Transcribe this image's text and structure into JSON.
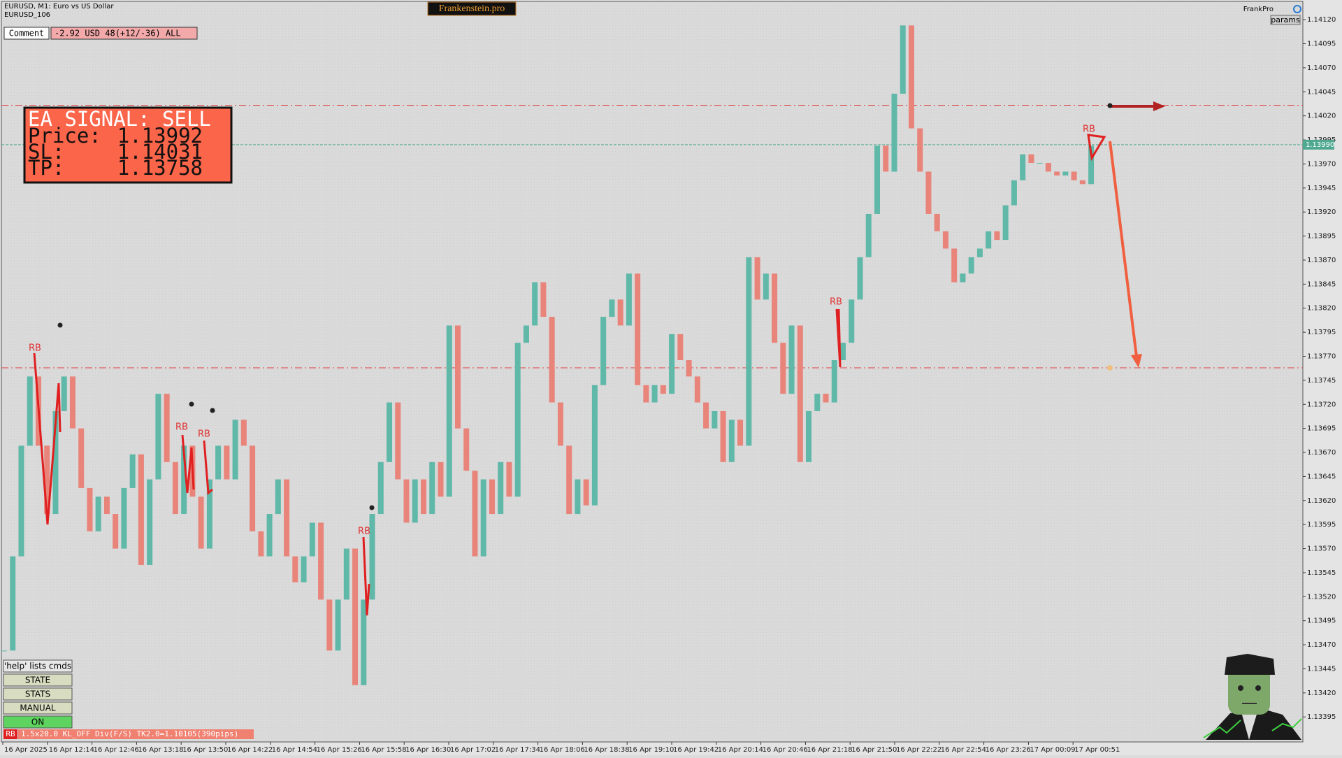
{
  "header": {
    "symbol": "EURUSD, M1:  Euro vs US Dollar",
    "account": "EURUSD_106",
    "brand": "Frankenstein.pro",
    "user": "FrankPro",
    "params": "params"
  },
  "comment": {
    "label": "Comment",
    "text": "-2.92 USD 48(+12/-36) ALL"
  },
  "signal": {
    "title": "EA SIGNAL: SELL",
    "rows": [
      {
        "label": "Price:",
        "value": "1.13992"
      },
      {
        "label": "SL:",
        "value": "1.14031"
      },
      {
        "label": "TP:",
        "value": "1.13758"
      }
    ]
  },
  "buttons": [
    "'help' lists cmds",
    "STATE",
    "STATS",
    "MANUAL",
    "ON"
  ],
  "status": {
    "tag": "RB",
    "text": "1.5x20.0 KL_OFF Div(F/S) TK2.0=1.10105(390pips)"
  },
  "annotations": [
    "RB",
    "RB",
    "RB",
    "RB",
    "RB",
    "RB"
  ],
  "chart_data": {
    "type": "candlestick",
    "up_color": "#5fb8a8",
    "down_color": "#e8847a",
    "values": [
      1.13464,
      1.13562,
      1.13677,
      1.13749,
      1.13677,
      1.13606,
      1.13713,
      1.13749,
      1.13695,
      1.13633,
      1.13588,
      1.13624,
      1.13606,
      1.1357,
      1.13633,
      1.13668,
      1.13553,
      1.13642,
      1.13731,
      1.1366,
      1.13606,
      1.13677,
      1.13624,
      1.1357,
      1.13642,
      1.13677,
      1.13642,
      1.13704,
      1.13677,
      1.13588,
      1.13562,
      1.13606,
      1.13642,
      1.13562,
      1.13535,
      1.13562,
      1.13597,
      1.13517,
      1.13464,
      1.13517,
      1.1357,
      1.13428,
      1.13517,
      1.13606,
      1.1366,
      1.13722,
      1.13642,
      1.13597,
      1.13642,
      1.13606,
      1.1366,
      1.13624,
      1.13802,
      1.13695,
      1.13651,
      1.13562,
      1.13642,
      1.13606,
      1.1366,
      1.13624,
      1.13784,
      1.13802,
      1.13847,
      1.13811,
      1.13722,
      1.13677,
      1.13606,
      1.13642,
      1.13615,
      1.1374,
      1.13811,
      1.13829,
      1.13802,
      1.13856,
      1.1374,
      1.13722,
      1.1374,
      1.13731,
      1.13793,
      1.13766,
      1.13749,
      1.13722,
      1.13695,
      1.13713,
      1.1366,
      1.13704,
      1.13677,
      1.13873,
      1.13829,
      1.13856,
      1.13784,
      1.13731,
      1.13802,
      1.1366,
      1.13713,
      1.13731,
      1.13722,
      1.13766,
      1.13784,
      1.13829,
      1.13873,
      1.13918,
      1.13989,
      1.13962,
      1.14043,
      1.14114,
      1.14007,
      1.13962,
      1.13918,
      1.139,
      1.13882,
      1.13847,
      1.13856,
      1.13873,
      1.13882,
      1.139,
      1.13891,
      1.13927,
      1.13953,
      1.1398,
      1.13971,
      1.13971,
      1.13962,
      1.13958,
      1.13962,
      1.13953,
      1.13949,
      1.13989
    ],
    "ylim": [
      1.13369,
      1.14139
    ],
    "yticks": [
      1.13395,
      {
        "value": 1.1342,
        "label": "1.13420"
      },
      1.13445,
      {
        "value": 1.1347,
        "label": "1.13470"
      },
      1.13495,
      {
        "value": 1.1352,
        "label": "1.13520"
      },
      1.13545,
      {
        "value": 1.1357,
        "label": "1.13570"
      },
      1.13595,
      {
        "value": 1.1362,
        "label": "1.13620"
      },
      1.13645,
      {
        "value": 1.1367,
        "label": "1.13670"
      },
      1.13695,
      {
        "value": 1.1372,
        "label": "1.13720"
      },
      1.13745,
      {
        "value": 1.1377,
        "label": "1.13770"
      },
      1.13795,
      {
        "value": 1.1382,
        "label": "1.13820"
      },
      1.13845,
      {
        "value": 1.1387,
        "label": "1.13870"
      },
      1.13895,
      {
        "value": 1.1392,
        "label": "1.13920"
      },
      1.13945,
      {
        "value": 1.1397,
        "label": "1.13970"
      },
      1.13995,
      {
        "value": 1.1402,
        "label": "1.14020"
      },
      1.14045,
      {
        "value": 1.1407,
        "label": "1.14070"
      },
      1.14095,
      {
        "value": 1.1412,
        "label": "1.14120"
      }
    ],
    "xtick_labels": [
      "16 Apr 2025",
      "16 Apr 12:14",
      "16 Apr 12:46",
      "16 Apr 13:18",
      "16 Apr 13:50",
      "16 Apr 14:22",
      "16 Apr 14:54",
      "16 Apr 15:26",
      "16 Apr 15:58",
      "16 Apr 16:30",
      "16 Apr 17:02",
      "16 Apr 17:34",
      "16 Apr 18:06",
      "16 Apr 18:38",
      "16 Apr 19:10",
      "16 Apr 19:42",
      "16 Apr 20:14",
      "16 Apr 20:46",
      "16 Apr 21:18",
      "16 Apr 21:50",
      "16 Apr 22:22",
      "16 Apr 22:54",
      "16 Apr 23:26",
      "17 Apr 00:09",
      "17 Apr 00:51"
    ],
    "sl_level": 1.14031,
    "tp_level": 1.13758,
    "price_line": {
      "value": 1.1399,
      "label": "1.13990"
    }
  }
}
